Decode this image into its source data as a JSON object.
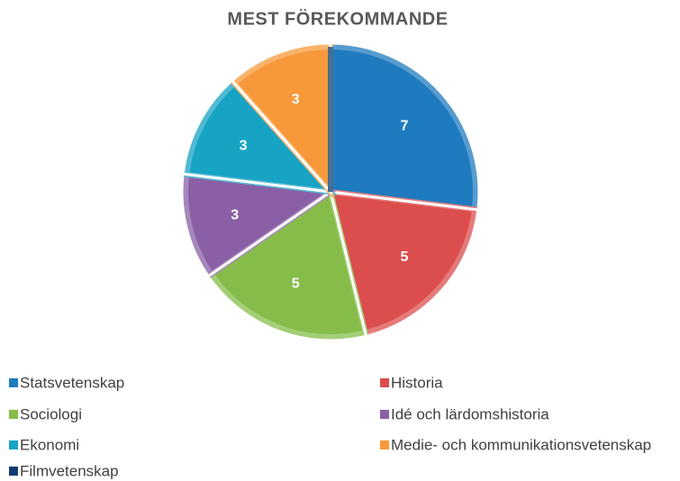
{
  "chart_data": {
    "type": "pie",
    "title": "MEST FÖREKOMMANDE",
    "categories": [
      "Statsvetenskap",
      "Historia",
      "Sociologi",
      "Idé och lärdomshistoria",
      "Ekonomi",
      "Medie- och kommunikationsvetenskap",
      "Filmvetenskap"
    ],
    "values": [
      7,
      5,
      5,
      3,
      3,
      3,
      0
    ],
    "colors": [
      "#1f7bbf",
      "#dc4d4d",
      "#86bd4a",
      "#8a5fa5",
      "#17a3c4",
      "#f7993a",
      "#0b3e6e"
    ],
    "legend": "bottom"
  }
}
